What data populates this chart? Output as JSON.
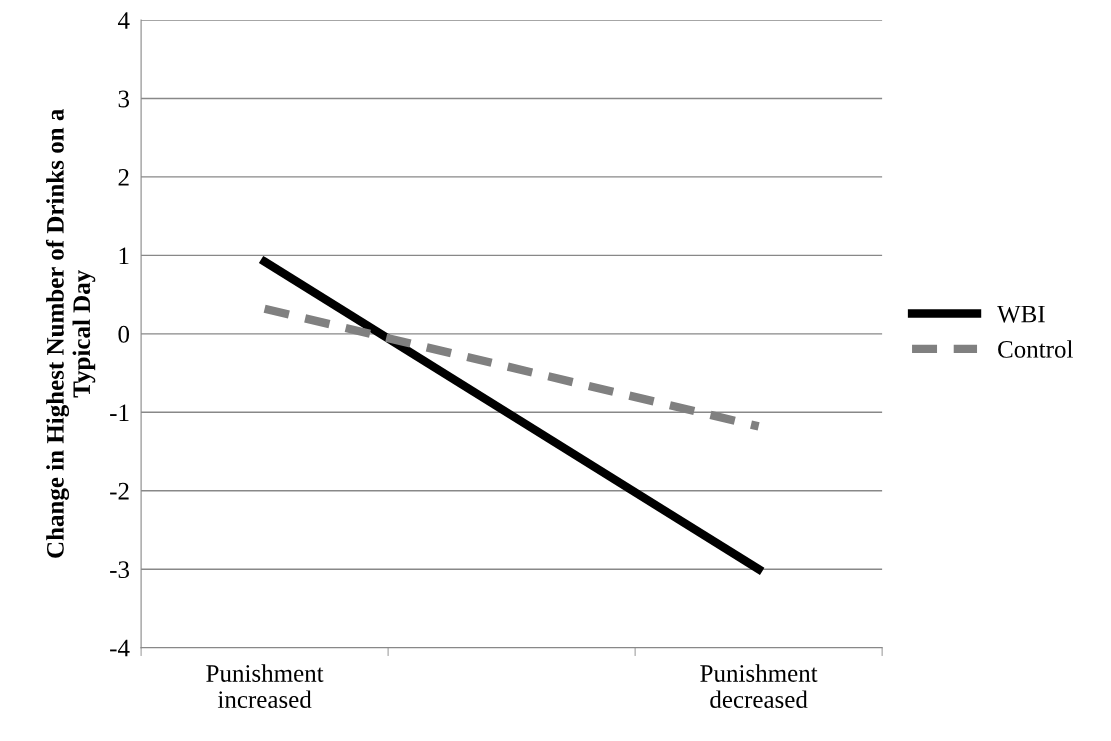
{
  "chart_data": {
    "type": "line",
    "ylabel": "Change in Highest Number of Drinks on a\nTypical Day",
    "categories": [
      "Punishment\nincreased",
      null,
      "Punishment\ndecreased"
    ],
    "series": [
      {
        "name": "WBI",
        "color": "#000000",
        "values": [
          0.92,
          null,
          -3.0
        ],
        "line_style": "solid"
      },
      {
        "name": "Control",
        "color": "#808080",
        "values": [
          0.32,
          null,
          -1.18
        ],
        "line_style": "dashed"
      }
    ],
    "ylim": [
      -4,
      4
    ],
    "yticks": [
      -4,
      -3,
      -2,
      -1,
      0,
      1,
      2,
      3,
      4
    ],
    "grid": "y",
    "legend": "right",
    "marker": "none"
  }
}
